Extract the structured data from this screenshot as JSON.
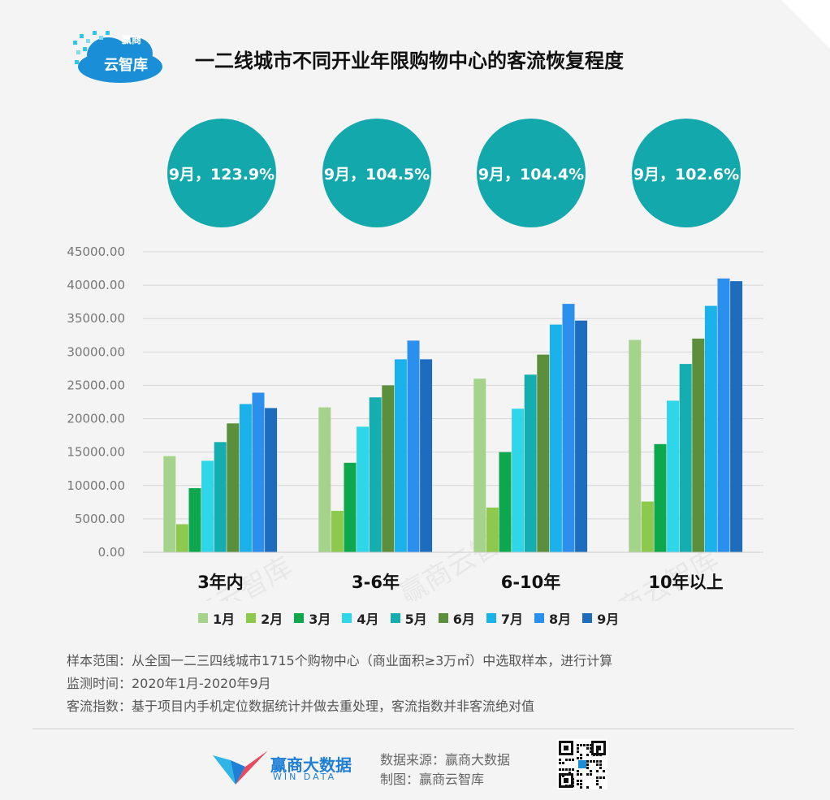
{
  "header": {
    "title": "一二线城市不同开业年限购物中心的客流恢复程度",
    "logo_line1": "赢商",
    "logo_line2": "云智库"
  },
  "bubbles": [
    "9月，123.9%",
    "9月，104.5%",
    "9月，104.4%",
    "9月，102.6%"
  ],
  "chart_data": {
    "type": "bar",
    "categories": [
      "3年内",
      "3-6年",
      "6-10年",
      "10年以上"
    ],
    "ylim": [
      0,
      45000
    ],
    "yticks": [
      "0.00",
      "5000.00",
      "10000.00",
      "15000.00",
      "20000.00",
      "25000.00",
      "30000.00",
      "35000.00",
      "40000.00",
      "45000.00"
    ],
    "grid": true,
    "legend_position": "bottom",
    "series": [
      {
        "name": "1月",
        "color": "#a6d38b",
        "values": [
          14400,
          21700,
          26000,
          31800
        ]
      },
      {
        "name": "2月",
        "color": "#8cc94c",
        "values": [
          4200,
          6200,
          6700,
          7600
        ]
      },
      {
        "name": "3月",
        "color": "#0da84d",
        "values": [
          9600,
          13400,
          15000,
          16200
        ]
      },
      {
        "name": "4月",
        "color": "#2fd5e8",
        "values": [
          13700,
          18800,
          21500,
          22700
        ]
      },
      {
        "name": "5月",
        "color": "#14aeb0",
        "values": [
          16500,
          23200,
          26600,
          28200
        ]
      },
      {
        "name": "6月",
        "color": "#5b8f3c",
        "values": [
          19300,
          25000,
          29600,
          32000
        ]
      },
      {
        "name": "7月",
        "color": "#1bb2ec",
        "values": [
          22200,
          28900,
          34100,
          36900
        ]
      },
      {
        "name": "8月",
        "color": "#2b8fee",
        "values": [
          23900,
          31700,
          37200,
          41000
        ]
      },
      {
        "name": "9月",
        "color": "#1d6cbd",
        "values": [
          21600,
          28900,
          34700,
          40600
        ]
      }
    ]
  },
  "watermark": "赢商云智库",
  "notes": [
    "样本范围：从全国一二三四线城市1715个购物中心（商业面积≥3万㎡）中选取样本，进行计算",
    "监测时间：2020年1月-2020年9月",
    "客流指数：基于项目内手机定位数据统计并做去重处理，客流指数并非客流绝对值"
  ],
  "footer": {
    "brand_name": "赢商大数据",
    "brand_sub": "WIN DATA",
    "source": "数据来源：赢商大数据",
    "maker": "制图：赢商云智库"
  }
}
